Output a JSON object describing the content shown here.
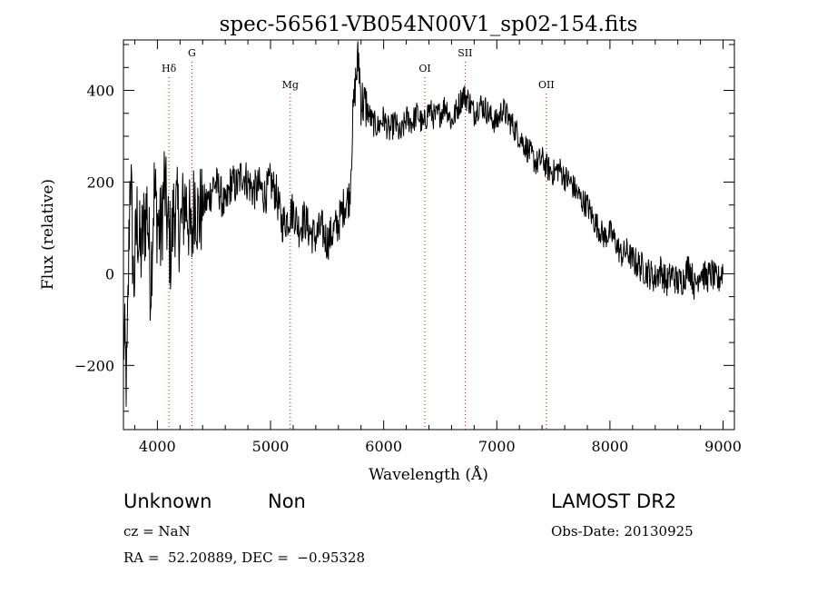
{
  "chart_data": {
    "type": "line",
    "title": "spec-56561-VB054N00V1_sp02-154.fits",
    "xlabel": "Wavelength (Å)",
    "ylabel": "Flux (relative)",
    "xlim": [
      3700,
      9100
    ],
    "ylim": [
      -340,
      510
    ],
    "x_ticks": [
      4000,
      5000,
      6000,
      7000,
      8000,
      9000
    ],
    "y_ticks": [
      -200,
      0,
      200,
      400
    ],
    "x_tick_labels": [
      "4000",
      "5000",
      "6000",
      "7000",
      "8000",
      "9000"
    ],
    "y_tick_labels": [
      "−200",
      "0",
      "200",
      "400"
    ],
    "grid": false,
    "line_color": "#000000",
    "marker_color": "#cc0000",
    "spectral_lines": [
      {
        "label": "Hδ",
        "x": 4102
      },
      {
        "label": "G",
        "x": 4305
      },
      {
        "label": "Mg",
        "x": 5175
      },
      {
        "label": "OI",
        "x": 6364
      },
      {
        "label": "SII",
        "x": 6720
      },
      {
        "label": "OII",
        "x": 7438
      }
    ],
    "series": [
      {
        "x": [
          3700,
          3730,
          3760,
          3790,
          3820,
          3850,
          3880,
          3910,
          3940,
          3970,
          4000,
          4030,
          4060,
          4090,
          4120,
          4150,
          4180,
          4210,
          4240,
          4270,
          4300,
          4330,
          4360,
          4400,
          4450,
          4500,
          4550,
          4600,
          4650,
          4700,
          4750,
          4800,
          4850,
          4900,
          4950,
          5000,
          5050,
          5100,
          5150,
          5200,
          5250,
          5300,
          5350,
          5400,
          5450,
          5500,
          5550,
          5600,
          5650,
          5700,
          5730,
          5760,
          5780,
          5800,
          5850,
          5900,
          5950,
          6000,
          6050,
          6100,
          6150,
          6200,
          6250,
          6300,
          6350,
          6400,
          6450,
          6500,
          6550,
          6600,
          6650,
          6700,
          6750,
          6800,
          6850,
          6900,
          6950,
          7000,
          7050,
          7100,
          7150,
          7200,
          7250,
          7300,
          7350,
          7400,
          7450,
          7500,
          7550,
          7600,
          7650,
          7700,
          7750,
          7800,
          7850,
          7900,
          7950,
          8000,
          8050,
          8100,
          8150,
          8200,
          8250,
          8300,
          8350,
          8400,
          8450,
          8500,
          8550,
          8600,
          8650,
          8700,
          8750,
          8800,
          8850,
          8900,
          8950,
          9000
        ],
        "y": [
          -130,
          -240,
          250,
          -30,
          120,
          40,
          100,
          150,
          -20,
          180,
          120,
          80,
          200,
          100,
          50,
          150,
          120,
          100,
          160,
          140,
          60,
          180,
          120,
          150,
          160,
          200,
          180,
          140,
          200,
          190,
          220,
          200,
          180,
          190,
          170,
          200,
          175,
          110,
          120,
          140,
          100,
          120,
          90,
          80,
          100,
          70,
          90,
          110,
          150,
          170,
          350,
          440,
          470,
          380,
          360,
          330,
          320,
          340,
          310,
          330,
          300,
          340,
          330,
          350,
          320,
          360,
          340,
          350,
          370,
          330,
          360,
          390,
          380,
          350,
          370,
          360,
          340,
          330,
          360,
          340,
          320,
          300,
          280,
          260,
          240,
          250,
          230,
          220,
          230,
          210,
          200,
          180,
          160,
          150,
          120,
          100,
          80,
          90,
          70,
          40,
          50,
          30,
          20,
          10,
          0,
          -10,
          10,
          -20,
          0,
          -20,
          -10,
          20,
          -30,
          10,
          -10,
          0,
          -20,
          10
        ]
      }
    ]
  },
  "info": {
    "class_label": "Unknown",
    "subclass_label": "Non",
    "survey": "LAMOST DR2",
    "cz": "cz = NaN",
    "obs_date": "Obs-Date: 20130925",
    "coords": "RA =  52.20889, DEC =  −0.95328"
  }
}
